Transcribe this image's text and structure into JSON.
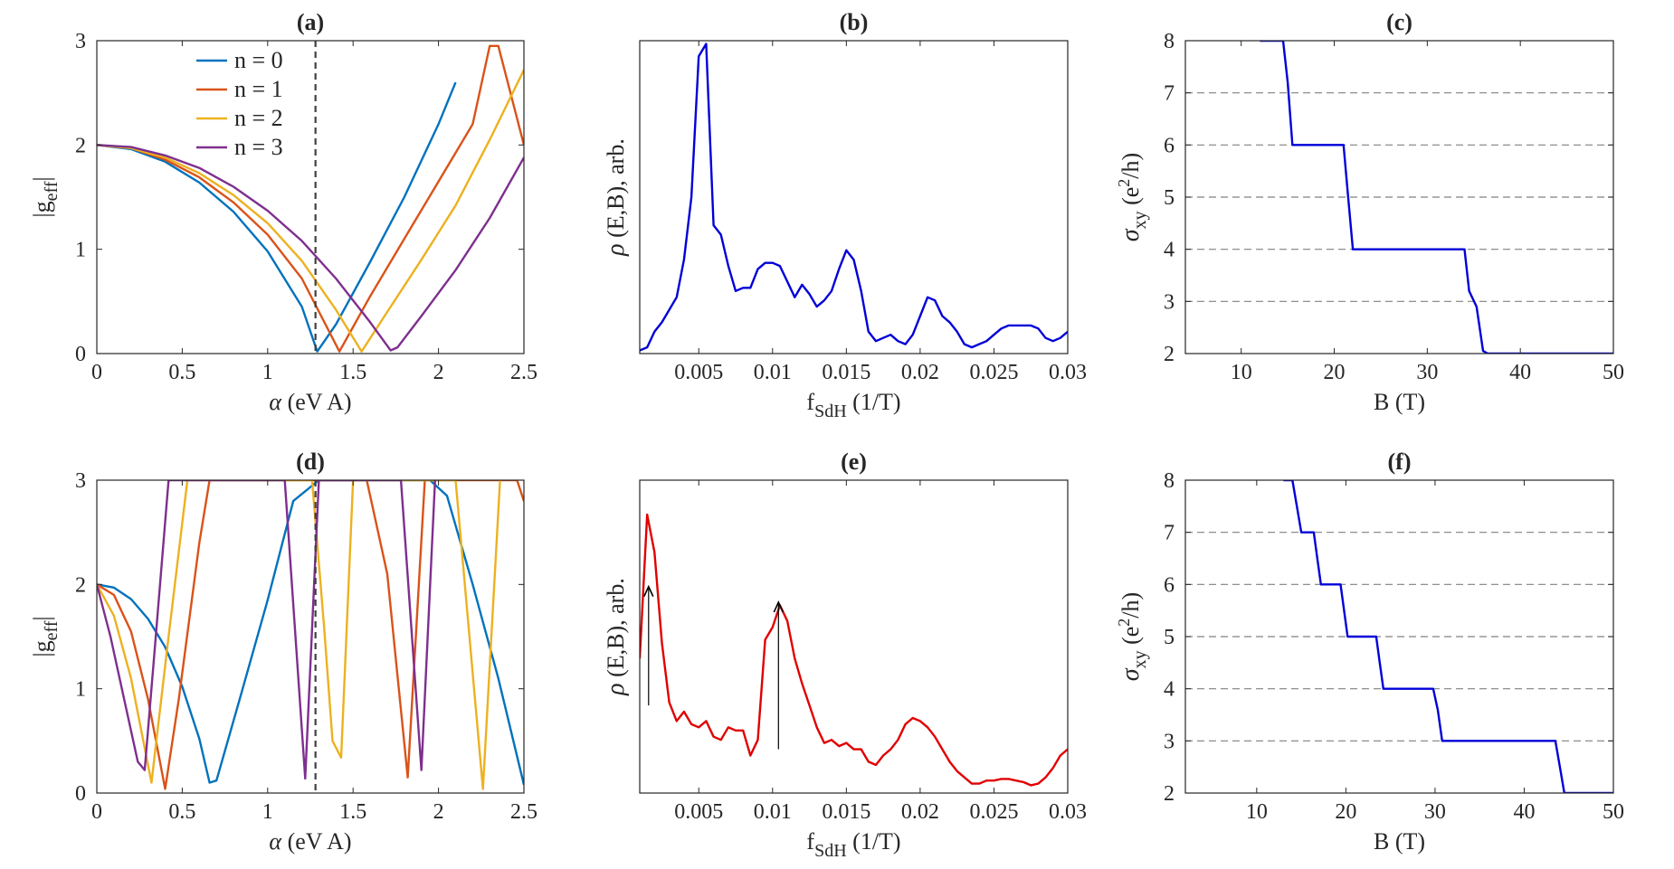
{
  "chart_data": [
    {
      "type": "line",
      "panel": "(a)",
      "title": "(a)",
      "xlabel": {
        "main": "α",
        "rest": " (eV A)"
      },
      "ylabel": {
        "main": "|g",
        "sub": "eff",
        "tail": "|"
      },
      "xlim": [
        0,
        2.5
      ],
      "ylim": [
        0,
        3
      ],
      "xticks": [
        0,
        0.5,
        1,
        1.5,
        2,
        2.5
      ],
      "xticklabels": [
        "0",
        "0.5",
        "1",
        "1.5",
        "2",
        "2.5"
      ],
      "yticks": [
        0,
        1,
        2,
        3
      ],
      "yticklabels": [
        "0",
        "1",
        "2",
        "3"
      ],
      "vline": 1.28,
      "legend": [
        "n = 0",
        "n = 1",
        "n = 2",
        "n = 3"
      ],
      "series": [
        {
          "name": "n = 0",
          "color": "#0072BD",
          "x": [
            0,
            0.2,
            0.4,
            0.6,
            0.8,
            1.0,
            1.2,
            1.29,
            1.4,
            1.6,
            1.8,
            2.0,
            2.1
          ],
          "y": [
            2,
            1.96,
            1.84,
            1.64,
            1.36,
            0.98,
            0.45,
            0.02,
            0.28,
            0.88,
            1.5,
            2.2,
            2.6
          ]
        },
        {
          "name": "n = 1",
          "color": "#D95319",
          "x": [
            0,
            0.2,
            0.4,
            0.6,
            0.8,
            1.0,
            1.2,
            1.42,
            1.6,
            1.8,
            2.0,
            2.2,
            2.3,
            2.35,
            2.5
          ],
          "y": [
            2,
            1.97,
            1.86,
            1.69,
            1.45,
            1.14,
            0.72,
            0.02,
            0.55,
            1.1,
            1.65,
            2.2,
            2.95,
            2.95,
            2.0
          ]
        },
        {
          "name": "n = 2",
          "color": "#EDB120",
          "x": [
            0,
            0.2,
            0.4,
            0.6,
            0.8,
            1.0,
            1.2,
            1.4,
            1.55,
            1.7,
            1.9,
            2.1,
            2.3,
            2.5
          ],
          "y": [
            2,
            1.97,
            1.88,
            1.73,
            1.52,
            1.25,
            0.89,
            0.42,
            0.02,
            0.4,
            0.9,
            1.42,
            2.05,
            2.72
          ]
        },
        {
          "name": "n = 3",
          "color": "#7E2F8E",
          "x": [
            0,
            0.2,
            0.4,
            0.6,
            0.8,
            1.0,
            1.2,
            1.4,
            1.6,
            1.72,
            1.76,
            1.9,
            2.1,
            2.3,
            2.5
          ],
          "y": [
            2,
            1.98,
            1.9,
            1.78,
            1.6,
            1.37,
            1.08,
            0.72,
            0.3,
            0.03,
            0.06,
            0.36,
            0.8,
            1.3,
            1.88
          ]
        }
      ]
    },
    {
      "type": "line",
      "panel": "(b)",
      "title": "(b)",
      "xlabel": {
        "main": "f",
        "sub": "SdH",
        "rest": " (1/T)"
      },
      "ylabel": {
        "main": "ρ",
        "rest": " (E,B), arb."
      },
      "xlim": [
        0.001,
        0.03
      ],
      "ylim": [
        0,
        1
      ],
      "xticks": [
        0.005,
        0.01,
        0.015,
        0.02,
        0.025,
        0.03
      ],
      "xticklabels": [
        "0.005",
        "0.01",
        "0.015",
        "0.02",
        "0.025",
        "0.03"
      ],
      "series": [
        {
          "name": "rho",
          "color": "#0000D8",
          "x": [
            0.001,
            0.0015,
            0.002,
            0.0025,
            0.003,
            0.0035,
            0.004,
            0.0045,
            0.005,
            0.0055,
            0.006,
            0.0065,
            0.007,
            0.0075,
            0.008,
            0.0085,
            0.009,
            0.0095,
            0.01,
            0.0105,
            0.011,
            0.0115,
            0.012,
            0.0125,
            0.013,
            0.0135,
            0.014,
            0.0145,
            0.015,
            0.0155,
            0.016,
            0.0165,
            0.017,
            0.0175,
            0.018,
            0.0185,
            0.019,
            0.0195,
            0.02,
            0.0205,
            0.021,
            0.0215,
            0.022,
            0.0225,
            0.023,
            0.0235,
            0.024,
            0.0245,
            0.025,
            0.0255,
            0.026,
            0.0265,
            0.027,
            0.0275,
            0.028,
            0.0285,
            0.029,
            0.0295,
            0.03
          ],
          "y": [
            0.01,
            0.02,
            0.07,
            0.1,
            0.14,
            0.18,
            0.3,
            0.5,
            0.95,
            0.99,
            0.41,
            0.38,
            0.28,
            0.2,
            0.21,
            0.21,
            0.27,
            0.29,
            0.29,
            0.28,
            0.23,
            0.18,
            0.22,
            0.19,
            0.15,
            0.17,
            0.2,
            0.27,
            0.33,
            0.3,
            0.2,
            0.07,
            0.04,
            0.05,
            0.06,
            0.04,
            0.03,
            0.06,
            0.12,
            0.18,
            0.17,
            0.12,
            0.1,
            0.07,
            0.03,
            0.02,
            0.03,
            0.04,
            0.06,
            0.08,
            0.09,
            0.09,
            0.09,
            0.09,
            0.08,
            0.05,
            0.04,
            0.05,
            0.07
          ]
        }
      ]
    },
    {
      "type": "line",
      "panel": "(c)",
      "title": "(c)",
      "xlabel": {
        "main": "B",
        "rest": " (T)"
      },
      "ylabel": {
        "main": "σ",
        "sub": "xy",
        "rest": " (e",
        "sup": "2",
        "tail": "/h)"
      },
      "xlim": [
        4,
        50
      ],
      "ylim": [
        2,
        8
      ],
      "xticks": [
        10,
        20,
        30,
        40,
        50
      ],
      "xticklabels": [
        "10",
        "20",
        "30",
        "40",
        "50"
      ],
      "yticks": [
        2,
        3,
        4,
        5,
        6,
        7,
        8
      ],
      "yticklabels": [
        "2",
        "3",
        "4",
        "5",
        "6",
        "7",
        "8"
      ],
      "hgrid": [
        3,
        4,
        5,
        6,
        7
      ],
      "series": [
        {
          "name": "sigma_xy",
          "color": "#0000D8",
          "x": [
            12,
            14.5,
            15,
            15.5,
            21,
            21.5,
            22,
            34,
            34.5,
            35.3,
            36,
            36.5,
            50
          ],
          "y": [
            8,
            8,
            7.2,
            6,
            6,
            5,
            4,
            4,
            3.2,
            2.9,
            2.05,
            2,
            2
          ]
        }
      ]
    },
    {
      "type": "line",
      "panel": "(d)",
      "title": "(d)",
      "xlabel": {
        "main": "α",
        "rest": " (eV A)"
      },
      "ylabel": {
        "main": "|g",
        "sub": "eff",
        "tail": "|"
      },
      "xlim": [
        0,
        2.5
      ],
      "ylim": [
        0,
        3
      ],
      "xticks": [
        0,
        0.5,
        1,
        1.5,
        2,
        2.5
      ],
      "xticklabels": [
        "0",
        "0.5",
        "1",
        "1.5",
        "2",
        "2.5"
      ],
      "yticks": [
        0,
        1,
        2,
        3
      ],
      "yticklabels": [
        "0",
        "1",
        "2",
        "3"
      ],
      "vline": 1.28,
      "series": [
        {
          "name": "n = 0",
          "color": "#0072BD",
          "x": [
            0,
            0.1,
            0.2,
            0.3,
            0.4,
            0.5,
            0.6,
            0.66,
            0.7,
            0.85,
            1.0,
            1.15,
            1.3,
            1.38,
            1.5,
            1.6,
            1.95,
            2.05,
            2.2,
            2.35,
            2.5
          ],
          "y": [
            2,
            1.97,
            1.86,
            1.67,
            1.4,
            1.02,
            0.52,
            0.1,
            0.12,
            0.98,
            1.85,
            2.8,
            3,
            3,
            3,
            3,
            3,
            2.85,
            2.0,
            1.1,
            0.08
          ]
        },
        {
          "name": "n = 1",
          "color": "#D95319",
          "x": [
            0,
            0.1,
            0.2,
            0.3,
            0.4,
            0.48,
            0.6,
            0.66,
            1.5,
            1.58,
            1.7,
            1.82,
            1.92,
            2.46,
            2.5
          ],
          "y": [
            2,
            1.9,
            1.55,
            0.9,
            0.04,
            0.9,
            2.4,
            3,
            3,
            3,
            2.1,
            0.15,
            3,
            3,
            2.8
          ]
        },
        {
          "name": "n = 2",
          "color": "#EDB120",
          "x": [
            0,
            0.1,
            0.2,
            0.32,
            0.42,
            0.53,
            1.26,
            1.33,
            1.38,
            1.43,
            1.5,
            2.1,
            2.26,
            2.36
          ],
          "y": [
            2,
            1.7,
            1.1,
            0.1,
            1.5,
            3,
            3,
            1.6,
            0.5,
            0.34,
            3,
            3,
            0.04,
            3
          ]
        },
        {
          "name": "n = 3",
          "color": "#7E2F8E",
          "x": [
            0,
            0.08,
            0.16,
            0.24,
            0.28,
            0.34,
            0.42,
            1.1,
            1.22,
            1.3,
            1.34,
            1.62,
            1.78,
            1.9,
            1.98
          ],
          "y": [
            2,
            1.5,
            0.9,
            0.3,
            0.22,
            1.4,
            3,
            3,
            0.14,
            3,
            3,
            3,
            3,
            0.22,
            3
          ]
        }
      ]
    },
    {
      "type": "line",
      "panel": "(e)",
      "title": "(e)",
      "xlabel": {
        "main": "f",
        "sub": "SdH",
        "rest": " (1/T)"
      },
      "ylabel": {
        "main": "ρ",
        "rest": " (E,B), arb."
      },
      "xlim": [
        0.001,
        0.03
      ],
      "ylim": [
        0,
        1
      ],
      "xticks": [
        0.005,
        0.01,
        0.015,
        0.02,
        0.025,
        0.03
      ],
      "xticklabels": [
        "0.005",
        "0.01",
        "0.015",
        "0.02",
        "0.025",
        "0.03"
      ],
      "annotations": [
        {
          "type": "arrow",
          "x": 0.0016,
          "y_from": 0.28,
          "y_to": 0.66
        },
        {
          "type": "arrow",
          "x": 0.0104,
          "y_from": 0.14,
          "y_to": 0.61
        }
      ],
      "series": [
        {
          "name": "rho",
          "color": "#E00000",
          "x": [
            0.001,
            0.0015,
            0.002,
            0.0025,
            0.003,
            0.0035,
            0.004,
            0.0045,
            0.005,
            0.0055,
            0.006,
            0.0065,
            0.007,
            0.0075,
            0.008,
            0.0085,
            0.009,
            0.0095,
            0.01,
            0.0105,
            0.011,
            0.0115,
            0.012,
            0.0125,
            0.013,
            0.0135,
            0.014,
            0.0145,
            0.015,
            0.0155,
            0.016,
            0.0165,
            0.017,
            0.0175,
            0.018,
            0.0185,
            0.019,
            0.0195,
            0.02,
            0.0205,
            0.021,
            0.0215,
            0.022,
            0.0225,
            0.023,
            0.0235,
            0.024,
            0.0245,
            0.025,
            0.0255,
            0.026,
            0.0265,
            0.027,
            0.0275,
            0.028,
            0.0285,
            0.029,
            0.0295,
            0.03
          ],
          "y": [
            0.43,
            0.89,
            0.77,
            0.48,
            0.29,
            0.23,
            0.26,
            0.22,
            0.21,
            0.23,
            0.18,
            0.17,
            0.21,
            0.2,
            0.2,
            0.12,
            0.17,
            0.49,
            0.53,
            0.6,
            0.55,
            0.43,
            0.35,
            0.28,
            0.21,
            0.16,
            0.17,
            0.15,
            0.16,
            0.14,
            0.14,
            0.1,
            0.09,
            0.12,
            0.14,
            0.17,
            0.22,
            0.24,
            0.23,
            0.21,
            0.18,
            0.14,
            0.1,
            0.07,
            0.05,
            0.03,
            0.03,
            0.04,
            0.04,
            0.045,
            0.045,
            0.04,
            0.035,
            0.025,
            0.03,
            0.05,
            0.08,
            0.12,
            0.14
          ]
        }
      ]
    },
    {
      "type": "line",
      "panel": "(f)",
      "title": "(f)",
      "xlabel": {
        "main": "B",
        "rest": " (T)"
      },
      "ylabel": {
        "main": "σ",
        "sub": "xy",
        "rest": " (e",
        "sup": "2",
        "tail": "/h)"
      },
      "xlim": [
        2,
        50
      ],
      "ylim": [
        2,
        8
      ],
      "xticks": [
        10,
        20,
        30,
        40,
        50
      ],
      "xticklabels": [
        "10",
        "20",
        "30",
        "40",
        "50"
      ],
      "yticks": [
        2,
        3,
        4,
        5,
        6,
        7,
        8
      ],
      "yticklabels": [
        "2",
        "3",
        "4",
        "5",
        "6",
        "7",
        "8"
      ],
      "hgrid": [
        3,
        4,
        5,
        6,
        7
      ],
      "series": [
        {
          "name": "sigma_xy",
          "color": "#0000D8",
          "x": [
            13,
            14,
            14.5,
            15,
            16.4,
            16.8,
            17.2,
            19.4,
            19.8,
            20.2,
            23.4,
            23.8,
            24.2,
            29.8,
            30.3,
            30.8,
            43.5,
            44,
            44.5,
            50
          ],
          "y": [
            8,
            8,
            7.5,
            7,
            7,
            6.5,
            6,
            6,
            5.5,
            5,
            5,
            4.5,
            4,
            4,
            3.6,
            3,
            3,
            2.5,
            2,
            2
          ]
        }
      ]
    }
  ]
}
